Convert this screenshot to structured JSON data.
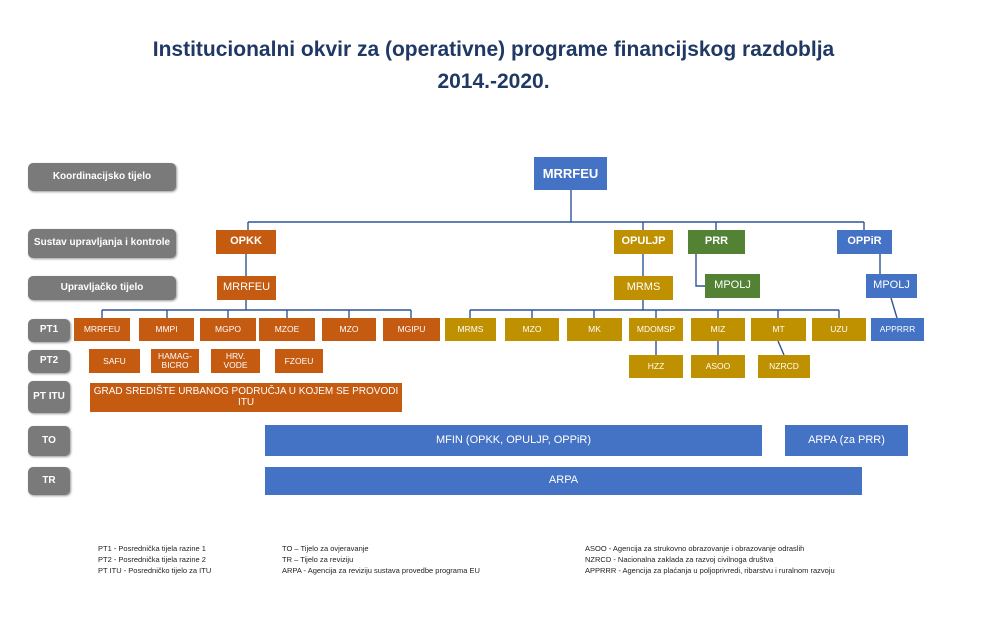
{
  "title": [
    "Institucionalni okvir za (operativne) programe financijskog razdoblja",
    "2014.-2020."
  ],
  "rows": [
    "Koordinacijsko tijelo",
    "Sustav upravljanja i kontrole",
    "Upravljačko tijelo",
    "PT1",
    "PT2",
    "PT ITU",
    "TO",
    "TR"
  ],
  "boxes": [
    "MRRFEU",
    "OPKK",
    "OPULJP",
    "PRR",
    "OPPiR",
    "MRRFEU",
    "MRMS",
    "MPOLJ",
    "MPOLJ",
    "MRRFEU",
    "MMPI",
    "MGPO",
    "MZOE",
    "MZO",
    "MGIPU",
    "MRMS",
    "MZO",
    "MK",
    "MDOMSP",
    "MIZ",
    "MT",
    "UZU",
    "APPRRR",
    "SAFU",
    "HAMAG-BICRO",
    "HRV. VODE",
    "FZOEU",
    "HZZ",
    "ASOO",
    "NZRCD",
    "GRAD SREDIŠTE URBANOG PODRUČJA U KOJEM SE PROVODI ITU",
    "MFIN (OPKK, OPULJP, OPPiR)",
    "ARPA (za PRR)",
    "ARPA"
  ],
  "legend": [
    [
      "PT1 - Posrednička tijela razine 1",
      "PT2 - Posrednička tijela razine 2",
      "PT ITU - Posredničko tijelo za ITU"
    ],
    [
      "TO – Tijelo za ovjeravanje",
      "TR – Tijelo za reviziju",
      "ARPA - Agencija za reviziju sustava provedbe programa EU"
    ],
    [
      "ASOO - Agencija za strukovno obrazovanje i obrazovanje odraslih",
      "NZRCD - Nacionalna zaklada za razvoj civilnoga društva",
      "APPRRR - Agencija za plaćanja u poljoprivredi, ribarstvu i ruralnom razvoju"
    ]
  ]
}
